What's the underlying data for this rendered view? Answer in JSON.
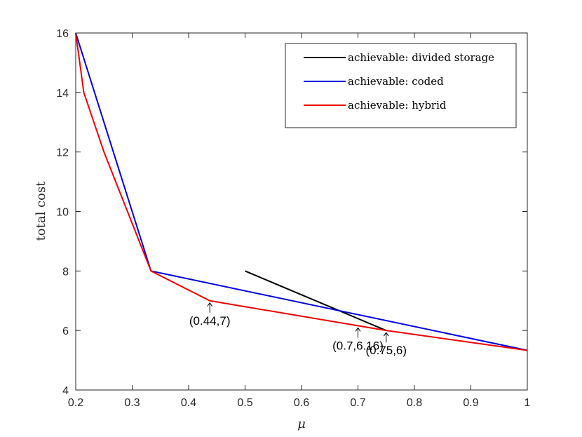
{
  "chart_data": {
    "type": "line",
    "title": "",
    "xlabel": "μ",
    "ylabel": "total cost",
    "xlim": [
      0.2,
      1
    ],
    "ylim": [
      4,
      16
    ],
    "xticks": [
      0.2,
      0.3,
      0.4,
      0.5,
      0.6,
      0.7,
      0.8,
      0.9,
      1
    ],
    "xtick_labels": [
      "0.2",
      "0.3",
      "0.4",
      "0.5",
      "0.6",
      "0.7",
      "0.8",
      "0.9",
      "1"
    ],
    "yticks": [
      4,
      6,
      8,
      10,
      12,
      14,
      16
    ],
    "ytick_labels": [
      "4",
      "6",
      "8",
      "10",
      "12",
      "14",
      "16"
    ],
    "grid": false,
    "legend_position": "top-right",
    "series": [
      {
        "name": "achievable: divided storage",
        "color": "#000000",
        "x": [
          0.5,
          0.75
        ],
        "y": [
          8,
          6
        ]
      },
      {
        "name": "achievable: coded",
        "color": "#0000e0",
        "x": [
          0.2,
          0.3333,
          1.0
        ],
        "y": [
          16,
          8,
          5.333
        ]
      },
      {
        "name": "achievable: hybrid",
        "color": "#ee0000",
        "x": [
          0.2,
          0.2143,
          0.25,
          0.3333,
          0.4375,
          0.7,
          0.75,
          1.0
        ],
        "y": [
          16,
          14,
          12,
          8,
          7,
          6.16,
          6,
          5.333
        ]
      }
    ],
    "annotations": [
      {
        "text": "(0.44,7)",
        "x": 0.4375,
        "y": 7,
        "label_side": "below"
      },
      {
        "text": "(0.7,6.16)",
        "x": 0.7,
        "y": 6.16,
        "label_side": "below"
      },
      {
        "text": "(0.75,6)",
        "x": 0.75,
        "y": 6,
        "label_side": "below"
      }
    ]
  }
}
